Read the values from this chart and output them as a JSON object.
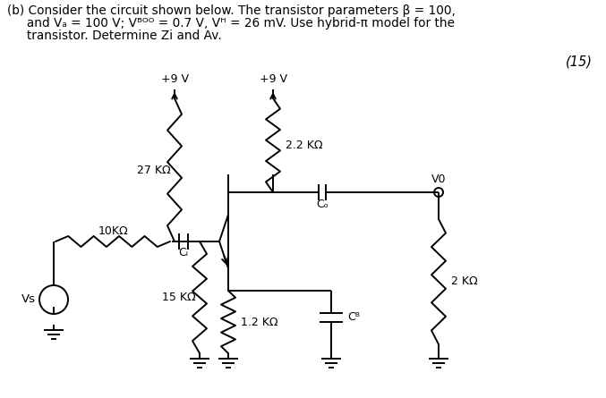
{
  "bg_color": "#ffffff",
  "line_color": "#000000",
  "header_line1": "(b) Consider the circuit shown below. The transistor parameters β = 100,",
  "header_line2": "     and Vₐ = 100 V; Vᴮᴼᴼ = 0.7 V, Vᴴ = 26 mV. Use hybrid-π model for the",
  "header_line3": "     transistor. Determine Zi and Av.",
  "mark15": "(15)"
}
